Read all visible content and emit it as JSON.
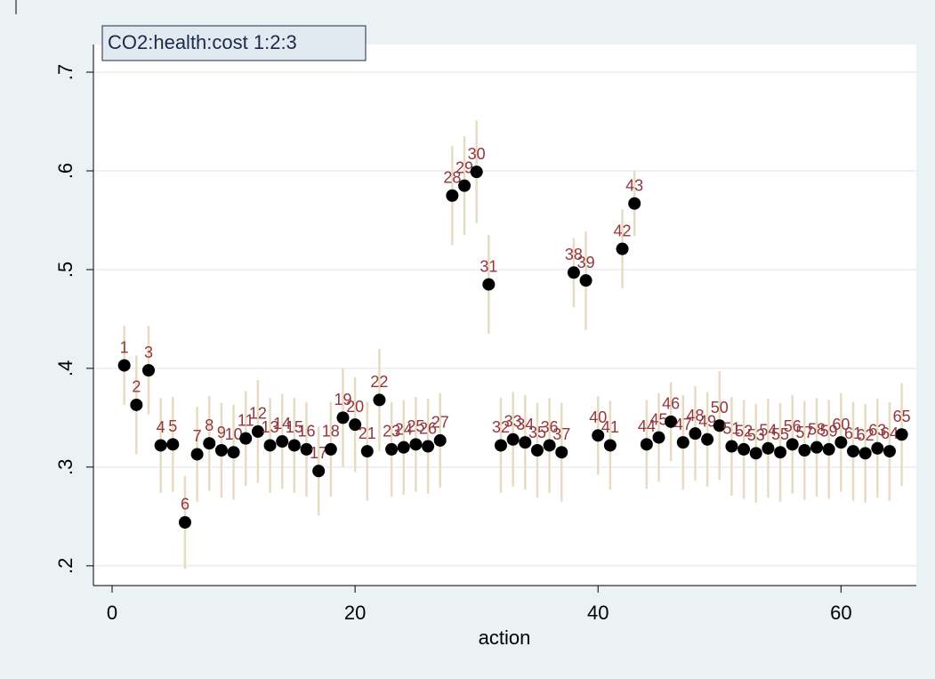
{
  "chart_data": {
    "type": "scatter",
    "title": "CO2:health:cost 1:2:3",
    "x_label": "action",
    "x": [
      1,
      2,
      3,
      4,
      5,
      6,
      7,
      8,
      9,
      10,
      11,
      12,
      13,
      14,
      15,
      16,
      17,
      18,
      19,
      20,
      21,
      22,
      23,
      24,
      25,
      26,
      27,
      28,
      29,
      30,
      31,
      32,
      33,
      34,
      35,
      36,
      37,
      38,
      39,
      40,
      41,
      42,
      43,
      44,
      45,
      46,
      47,
      48,
      49,
      50,
      51,
      52,
      53,
      54,
      55,
      56,
      57,
      58,
      59,
      60,
      61,
      62,
      63,
      64,
      65
    ],
    "values": [
      0.403,
      0.363,
      0.398,
      0.322,
      0.323,
      0.244,
      0.313,
      0.324,
      0.317,
      0.315,
      0.329,
      0.336,
      0.322,
      0.326,
      0.322,
      0.318,
      0.296,
      0.318,
      0.35,
      0.343,
      0.316,
      0.368,
      0.318,
      0.32,
      0.323,
      0.321,
      0.327,
      0.575,
      0.585,
      0.599,
      0.485,
      0.322,
      0.328,
      0.325,
      0.317,
      0.322,
      0.315,
      0.497,
      0.489,
      0.332,
      0.322,
      0.521,
      0.567,
      0.323,
      0.33,
      0.346,
      0.325,
      0.334,
      0.328,
      0.342,
      0.321,
      0.318,
      0.314,
      0.319,
      0.315,
      0.323,
      0.317,
      0.32,
      0.318,
      0.325,
      0.316,
      0.314,
      0.319,
      0.316,
      0.333
    ],
    "errors": [
      0.04,
      0.05,
      0.045,
      0.048,
      0.048,
      0.047,
      0.048,
      0.048,
      0.048,
      0.048,
      0.048,
      0.052,
      0.048,
      0.048,
      0.048,
      0.048,
      0.045,
      0.048,
      0.05,
      0.048,
      0.05,
      0.052,
      0.048,
      0.048,
      0.048,
      0.048,
      0.048,
      0.05,
      0.05,
      0.052,
      0.05,
      0.048,
      0.048,
      0.048,
      0.048,
      0.048,
      0.05,
      0.035,
      0.05,
      0.04,
      0.045,
      0.04,
      0.033,
      0.045,
      0.045,
      0.04,
      0.048,
      0.048,
      0.048,
      0.055,
      0.05,
      0.05,
      0.05,
      0.05,
      0.05,
      0.05,
      0.05,
      0.05,
      0.05,
      0.05,
      0.05,
      0.05,
      0.05,
      0.05,
      0.052
    ],
    "xlim": [
      -1.54,
      66.2
    ],
    "ylim": [
      0.18,
      0.728
    ],
    "xticks": [
      0,
      20,
      40,
      60
    ],
    "yticks": [
      {
        "value": 0.2,
        "label": ".2"
      },
      {
        "value": 0.3,
        "label": ".3"
      },
      {
        "value": 0.4,
        "label": ".4"
      },
      {
        "value": 0.5,
        "label": ".5"
      },
      {
        "value": 0.6,
        "label": ".6"
      },
      {
        "value": 0.7,
        "label": ".7"
      }
    ],
    "grid": true,
    "color": "#000000",
    "error_color": "#e6dcc2",
    "label_color": "#94363c"
  }
}
